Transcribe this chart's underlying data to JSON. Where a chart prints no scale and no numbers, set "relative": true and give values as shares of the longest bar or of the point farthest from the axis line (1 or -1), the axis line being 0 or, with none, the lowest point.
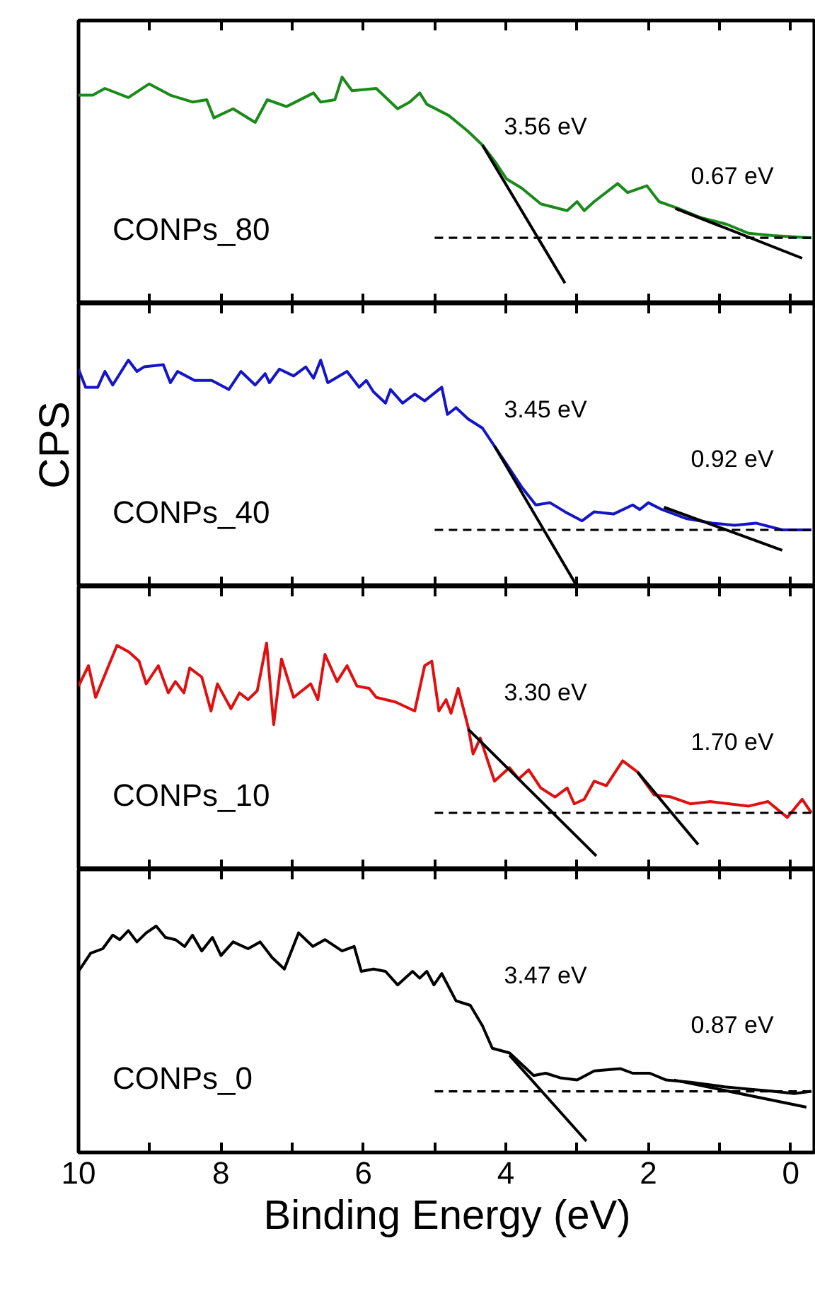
{
  "chart_data": [
    {
      "type": "line",
      "relative": true,
      "title": "CONPs_80",
      "xlim": [
        10,
        -0.35
      ],
      "xticks": [
        10,
        {
          "value": 9,
          "label": null
        },
        8,
        {
          "value": 7,
          "label": null
        },
        6,
        {
          "value": 5,
          "label": null
        },
        4,
        {
          "value": 3,
          "label": null
        },
        2,
        {
          "value": 1,
          "label": null
        },
        0
      ],
      "tick_labels": false,
      "series": [
        {
          "color": "#1a8a1a",
          "x": [
            10.0,
            9.8,
            9.63,
            9.3,
            9.01,
            8.71,
            8.4,
            8.2,
            8.1,
            7.83,
            7.52,
            7.35,
            7.08,
            6.7,
            6.6,
            6.4,
            6.3,
            6.16,
            5.82,
            5.52,
            5.35,
            5.21,
            5.11,
            4.8,
            4.53,
            4.33,
            4.16,
            3.99,
            3.78,
            3.51,
            3.14,
            3.0,
            2.9,
            2.76,
            2.43,
            2.29,
            2.02,
            1.85,
            1.58,
            1.27,
            0.9,
            0.59,
            0.25,
            -0.29
          ],
          "values": [
            0.92,
            0.92,
            0.95,
            0.91,
            0.97,
            0.92,
            0.89,
            0.9,
            0.82,
            0.86,
            0.8,
            0.9,
            0.87,
            0.93,
            0.89,
            0.9,
            1.0,
            0.94,
            0.95,
            0.86,
            0.89,
            0.93,
            0.88,
            0.83,
            0.76,
            0.7,
            0.63,
            0.55,
            0.51,
            0.44,
            0.41,
            0.45,
            0.41,
            0.45,
            0.53,
            0.49,
            0.52,
            0.45,
            0.42,
            0.38,
            0.35,
            0.31,
            0.3,
            0.29
          ]
        },
        {
          "color": "#000000",
          "x": [
            4.33,
            3.17
          ],
          "values": [
            0.7,
            0.09
          ]
        },
        {
          "color": "#000000",
          "x": [
            1.62,
            -0.16
          ],
          "values": [
            0.42,
            0.2
          ]
        },
        {
          "color": "#000000",
          "x": [
            5.0,
            -0.35
          ],
          "values": [
            0.29,
            0.29
          ],
          "line_style": "dashed"
        }
      ],
      "annotations": [
        "3.56 eV",
        "0.67 eV"
      ]
    },
    {
      "type": "line",
      "relative": true,
      "title": "CONPs_40",
      "ylabel": "CPS",
      "xlim": [
        10,
        -0.35
      ],
      "xticks": [
        10,
        {
          "value": 9,
          "label": null
        },
        8,
        {
          "value": 7,
          "label": null
        },
        6,
        {
          "value": 5,
          "label": null
        },
        4,
        {
          "value": 3,
          "label": null
        },
        2,
        {
          "value": 1,
          "label": null
        },
        0
      ],
      "tick_labels": false,
      "series": [
        {
          "color": "#1414c8",
          "x": [
            10.0,
            9.9,
            9.73,
            9.63,
            9.52,
            9.3,
            9.18,
            9.08,
            8.81,
            8.71,
            8.61,
            8.37,
            8.13,
            7.89,
            7.72,
            7.52,
            7.38,
            7.32,
            7.18,
            6.98,
            6.81,
            6.7,
            6.6,
            6.5,
            6.23,
            6.06,
            5.96,
            5.86,
            5.69,
            5.62,
            5.45,
            5.28,
            5.14,
            4.9,
            4.82,
            4.7,
            4.53,
            4.33,
            4.16,
            3.99,
            3.78,
            3.58,
            3.38,
            3.17,
            2.93,
            2.76,
            2.49,
            2.22,
            2.12,
            2.0,
            1.81,
            1.47,
            1.1,
            0.79,
            0.49,
            0.12,
            -0.29
          ],
          "values": [
            0.96,
            0.88,
            0.88,
            0.95,
            0.89,
            1.0,
            0.95,
            0.97,
            0.98,
            0.9,
            0.95,
            0.91,
            0.91,
            0.87,
            0.95,
            0.89,
            0.94,
            0.9,
            0.96,
            0.93,
            0.97,
            0.92,
            1.0,
            0.9,
            0.95,
            0.88,
            0.91,
            0.86,
            0.81,
            0.87,
            0.81,
            0.85,
            0.82,
            0.88,
            0.76,
            0.79,
            0.74,
            0.7,
            0.62,
            0.54,
            0.44,
            0.36,
            0.37,
            0.33,
            0.29,
            0.33,
            0.32,
            0.36,
            0.34,
            0.37,
            0.34,
            0.3,
            0.28,
            0.27,
            0.28,
            0.25,
            0.25
          ]
        },
        {
          "color": "#000000",
          "x": [
            4.16,
            3.0
          ],
          "values": [
            0.62,
            0.0
          ]
        },
        {
          "color": "#000000",
          "x": [
            1.78,
            0.12
          ],
          "values": [
            0.35,
            0.16
          ]
        },
        {
          "color": "#000000",
          "x": [
            5.0,
            -0.35
          ],
          "values": [
            0.25,
            0.25
          ],
          "line_style": "dashed"
        }
      ],
      "annotations": [
        "3.45 eV",
        "0.92 eV"
      ]
    },
    {
      "type": "line",
      "relative": true,
      "title": "CONPs_10",
      "xlim": [
        10,
        -0.35
      ],
      "xticks": [
        10,
        {
          "value": 9,
          "label": null
        },
        8,
        {
          "value": 7,
          "label": null
        },
        6,
        {
          "value": 5,
          "label": null
        },
        4,
        {
          "value": 3,
          "label": null
        },
        2,
        {
          "value": 1,
          "label": null
        },
        0
      ],
      "tick_labels": false,
      "series": [
        {
          "color": "#e01010",
          "x": [
            10.0,
            9.86,
            9.76,
            9.46,
            9.29,
            9.15,
            9.05,
            8.88,
            8.74,
            8.64,
            8.52,
            8.44,
            8.27,
            8.14,
            8.05,
            7.86,
            7.74,
            7.62,
            7.49,
            7.36,
            7.26,
            7.15,
            6.98,
            6.74,
            6.64,
            6.54,
            6.37,
            6.23,
            6.09,
            5.92,
            5.82,
            5.55,
            5.28,
            5.14,
            5.04,
            4.94,
            4.84,
            4.77,
            4.67,
            4.53,
            4.46,
            4.36,
            4.16,
            3.95,
            3.82,
            3.68,
            3.51,
            3.31,
            3.14,
            3.04,
            2.9,
            2.76,
            2.59,
            2.36,
            2.15,
            1.92,
            1.68,
            1.41,
            1.13,
            0.86,
            0.59,
            0.32,
            0.05,
            -0.16,
            -0.29
          ],
          "values": [
            0.81,
            0.9,
            0.76,
            0.99,
            0.96,
            0.92,
            0.82,
            0.9,
            0.78,
            0.83,
            0.78,
            0.89,
            0.85,
            0.7,
            0.82,
            0.71,
            0.78,
            0.75,
            0.79,
            1.0,
            0.64,
            0.93,
            0.76,
            0.82,
            0.75,
            0.95,
            0.83,
            0.9,
            0.81,
            0.8,
            0.76,
            0.74,
            0.7,
            0.9,
            0.92,
            0.7,
            0.75,
            0.69,
            0.8,
            0.63,
            0.51,
            0.58,
            0.39,
            0.45,
            0.4,
            0.44,
            0.36,
            0.32,
            0.36,
            0.29,
            0.31,
            0.39,
            0.37,
            0.48,
            0.43,
            0.33,
            0.32,
            0.29,
            0.3,
            0.29,
            0.28,
            0.3,
            0.23,
            0.31,
            0.25
          ]
        },
        {
          "color": "#000000",
          "x": [
            4.53,
            2.73
          ],
          "values": [
            0.62,
            0.06
          ]
        },
        {
          "color": "#000000",
          "x": [
            2.15,
            1.3
          ],
          "values": [
            0.43,
            0.11
          ]
        },
        {
          "color": "#000000",
          "x": [
            5.0,
            -0.35
          ],
          "values": [
            0.25,
            0.25
          ],
          "line_style": "dashed"
        }
      ],
      "annotations": [
        "3.30 eV",
        "1.70 eV"
      ]
    },
    {
      "type": "line",
      "relative": true,
      "title": "CONPs_0",
      "xlabel": "Binding Energy (eV)",
      "xlim": [
        10,
        -0.35
      ],
      "xticks": [
        10,
        {
          "value": 9,
          "label": null
        },
        8,
        {
          "value": 7,
          "label": null
        },
        6,
        {
          "value": 5,
          "label": null
        },
        4,
        {
          "value": 3,
          "label": null
        },
        2,
        {
          "value": 1,
          "label": null
        },
        0
      ],
      "tick_labels": "x",
      "series": [
        {
          "color": "#000000",
          "x": [
            10.0,
            9.83,
            9.66,
            9.52,
            9.42,
            9.3,
            9.18,
            9.05,
            8.91,
            8.78,
            8.64,
            8.51,
            8.4,
            8.27,
            8.12,
            8.0,
            7.83,
            7.62,
            7.45,
            7.28,
            7.11,
            6.91,
            6.71,
            6.54,
            6.3,
            6.13,
            6.03,
            5.86,
            5.69,
            5.52,
            5.31,
            5.21,
            5.11,
            5.01,
            4.9,
            4.7,
            4.5,
            4.33,
            4.19,
            3.95,
            3.78,
            3.61,
            3.44,
            3.24,
            3.0,
            2.76,
            2.39,
            2.22,
            1.98,
            1.75,
            1.41,
            0.93,
            0.59,
            0.25,
            -0.05,
            -0.29
          ],
          "values": [
            0.8,
            0.88,
            0.9,
            0.96,
            0.94,
            0.98,
            0.93,
            0.97,
            1.0,
            0.95,
            0.94,
            0.91,
            0.96,
            0.89,
            0.95,
            0.87,
            0.93,
            0.9,
            0.93,
            0.86,
            0.81,
            0.97,
            0.91,
            0.94,
            0.89,
            0.91,
            0.8,
            0.81,
            0.8,
            0.74,
            0.8,
            0.77,
            0.8,
            0.74,
            0.79,
            0.67,
            0.65,
            0.56,
            0.46,
            0.44,
            0.39,
            0.34,
            0.35,
            0.33,
            0.32,
            0.36,
            0.37,
            0.35,
            0.35,
            0.32,
            0.31,
            0.29,
            0.28,
            0.27,
            0.26,
            0.27
          ]
        },
        {
          "color": "#000000",
          "x": [
            3.95,
            2.87
          ],
          "values": [
            0.43,
            0.05
          ]
        },
        {
          "color": "#000000",
          "x": [
            1.64,
            -0.22
          ],
          "values": [
            0.32,
            0.2
          ]
        },
        {
          "color": "#000000",
          "x": [
            5.0,
            -0.35
          ],
          "values": [
            0.27,
            0.27
          ],
          "line_style": "dashed"
        }
      ],
      "annotations": [
        "3.47 eV",
        "0.87 eV"
      ]
    }
  ]
}
